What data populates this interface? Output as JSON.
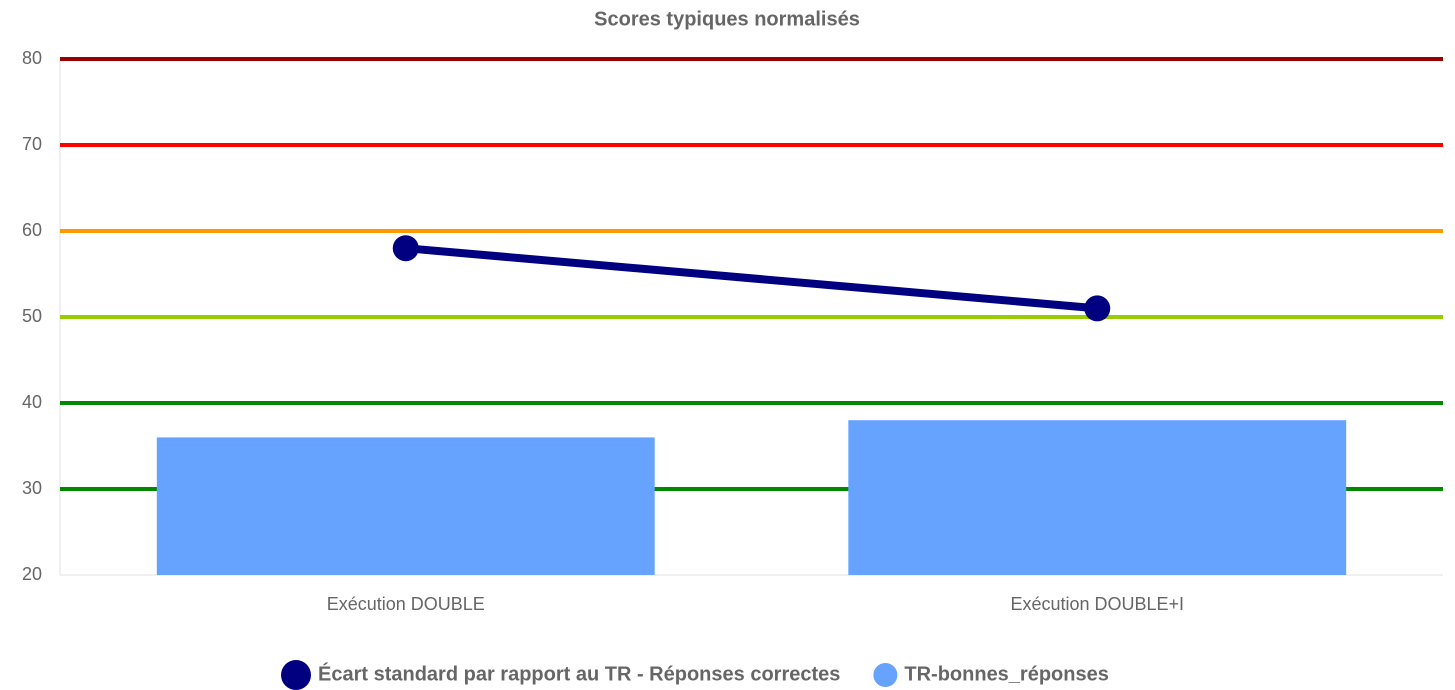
{
  "chart_data": {
    "type": "combo",
    "title": "Scores typiques normalisés",
    "categories": [
      "Exécution DOUBLE",
      "Exécution DOUBLE+I"
    ],
    "series": [
      {
        "name": "Écart standard par rapport au TR - Réponses correctes",
        "type": "line",
        "color": "#000080",
        "values": [
          58,
          51
        ]
      },
      {
        "name": "TR-bonnes_réponses",
        "type": "bar",
        "color": "#66a3ff",
        "values": [
          36,
          38
        ]
      }
    ],
    "ylim": [
      20,
      80
    ],
    "yticks": [
      20,
      30,
      40,
      50,
      60,
      70,
      80
    ],
    "grid": true,
    "grid_colors": [
      "#e0e0e0",
      "#008800",
      "#008800",
      "#99cc00",
      "#ff9900",
      "#ff0000",
      "#990000"
    ],
    "legend": "bottom"
  }
}
